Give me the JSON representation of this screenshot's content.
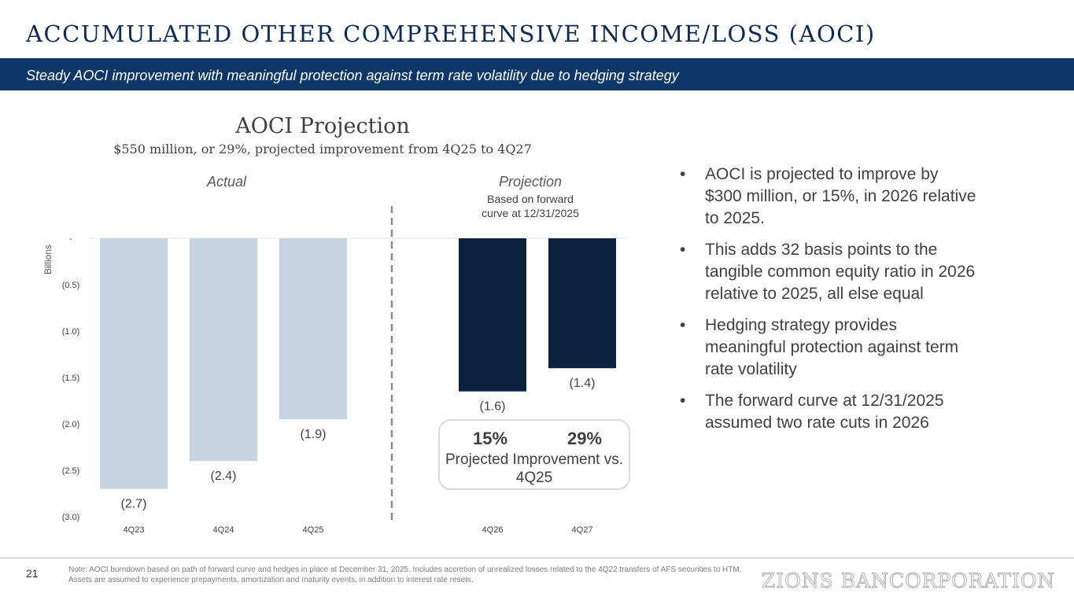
{
  "header": {
    "title": "ACCUMULATED OTHER COMPREHENSIVE INCOME/LOSS (AOCI)",
    "banner": "Steady AOCI improvement with meaningful protection against term rate volatility due to hedging strategy"
  },
  "chart_data": {
    "type": "bar",
    "title": "AOCI Projection",
    "subtitle": "$550 million, or 29%, projected improvement from 4Q25 to 4Q27",
    "ylabel": "Billions",
    "ylim": [
      -3.0,
      0
    ],
    "yticks": [
      0,
      -0.5,
      -1.0,
      -1.5,
      -2.0,
      -2.5,
      -3.0
    ],
    "ytick_labels": [
      "-",
      "(0.5)",
      "(1.0)",
      "(1.5)",
      "(2.0)",
      "(2.5)",
      "(3.0)"
    ],
    "categories": [
      "4Q23",
      "4Q24",
      "4Q25",
      "4Q26",
      "4Q27"
    ],
    "values": [
      -2.7,
      -2.4,
      -1.95,
      -1.65,
      -1.4
    ],
    "data_labels": [
      "(2.7)",
      "(2.4)",
      "(1.9)",
      "(1.6)",
      "(1.4)"
    ],
    "groups": [
      {
        "label": "Actual",
        "note": "",
        "color": "#c5d4e0",
        "indices": [
          0,
          1,
          2
        ]
      },
      {
        "label": "Projection",
        "note": "Based on forward curve at 12/31/2025",
        "color": "#0c2340",
        "indices": [
          3,
          4
        ]
      }
    ],
    "grid": false,
    "legend": "none"
  },
  "projection_box": {
    "pct_1": "15%",
    "pct_2": "29%",
    "label": "Projected Improvement vs. 4Q25"
  },
  "bullets": [
    "AOCI is projected to improve by $300 million, or 15%, in 2026 relative to 2025.",
    "This adds 32 basis points to the tangible common equity ratio in 2026 relative to 2025, all else equal",
    "Hedging strategy provides meaningful protection against term rate volatility",
    "The forward curve at 12/31/2025 assumed two rate cuts in 2026"
  ],
  "footer": {
    "page_number": "21",
    "note": "Note: AOCI burndown based on path of forward curve and hedges in place at December 31, 2025. Includes accretion of unrealized losses related to the 4Q22 transfers of AFS securities to HTM. Assets are assumed to experience prepayments, amortization and maturity events, in addition to interest rate resets.",
    "logo": "ZIONS BANCORPORATION"
  },
  "colors": {
    "navy": "#0c3766",
    "actual_bar": "#c5d4e0",
    "projection_bar": "#0c2340"
  }
}
